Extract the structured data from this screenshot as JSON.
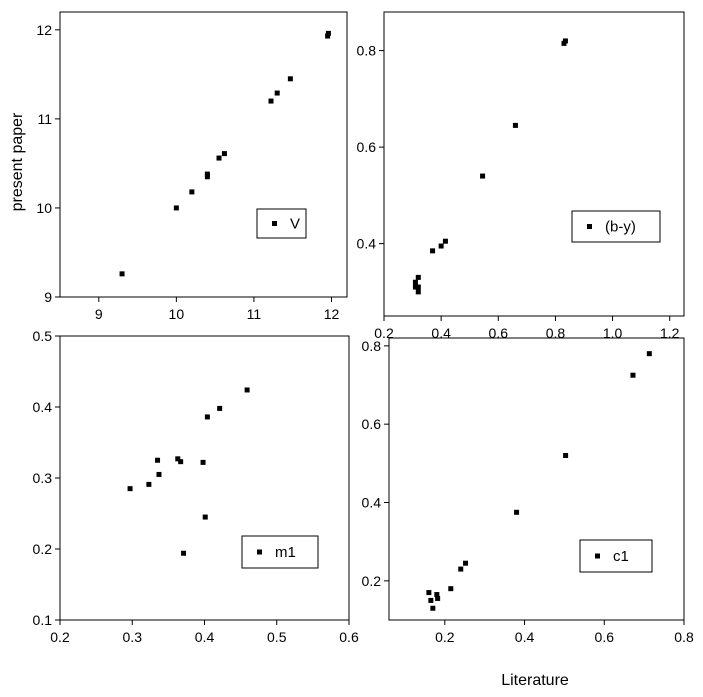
{
  "shared_labels": {
    "ylabel": "present paper",
    "xlabel": "Literature"
  },
  "chart_data": [
    {
      "type": "scatter",
      "legend": "V",
      "legend_position": "lower-right",
      "xlim": [
        8.5,
        12.2
      ],
      "ylim": [
        9,
        12.2
      ],
      "xticks": [
        9,
        10,
        11,
        12
      ],
      "yticks": [
        9,
        10,
        11,
        12
      ],
      "xtick_labels": [
        "9",
        "10",
        "11",
        "12"
      ],
      "ytick_labels": [
        "9",
        "10",
        "11",
        "12"
      ],
      "points": [
        [
          9.3,
          9.26
        ],
        [
          10.0,
          10.0
        ],
        [
          10.2,
          10.18
        ],
        [
          10.4,
          10.35
        ],
        [
          10.4,
          10.38
        ],
        [
          10.55,
          10.56
        ],
        [
          10.62,
          10.61
        ],
        [
          11.22,
          11.2
        ],
        [
          11.3,
          11.29
        ],
        [
          11.47,
          11.45
        ],
        [
          11.95,
          11.93
        ],
        [
          11.96,
          11.96
        ]
      ],
      "color": "#000000"
    },
    {
      "type": "scatter",
      "legend": "(b-y)",
      "legend_position": "lower-right",
      "xlim": [
        0.2,
        1.25
      ],
      "ylim": [
        0.25,
        0.88
      ],
      "xticks": [
        0.2,
        0.4,
        0.6,
        0.8,
        1.0,
        1.2
      ],
      "yticks": [
        0.4,
        0.6,
        0.8
      ],
      "xtick_labels": [
        "0.2",
        "0.4",
        "0.6",
        "0.8",
        "1.0",
        "1.2"
      ],
      "ytick_labels": [
        "0.4",
        "0.6",
        "0.8"
      ],
      "points": [
        [
          0.31,
          0.31
        ],
        [
          0.31,
          0.32
        ],
        [
          0.32,
          0.3
        ],
        [
          0.32,
          0.31
        ],
        [
          0.32,
          0.33
        ],
        [
          0.37,
          0.385
        ],
        [
          0.4,
          0.395
        ],
        [
          0.415,
          0.405
        ],
        [
          0.545,
          0.54
        ],
        [
          0.66,
          0.645
        ],
        [
          0.83,
          0.815
        ],
        [
          0.835,
          0.82
        ]
      ],
      "color": "#000000"
    },
    {
      "type": "scatter",
      "legend": "m1",
      "legend_position": "lower-right",
      "xlim": [
        0.2,
        0.6
      ],
      "ylim": [
        0.1,
        0.5
      ],
      "xticks": [
        0.2,
        0.3,
        0.4,
        0.5,
        0.6
      ],
      "yticks": [
        0.1,
        0.2,
        0.3,
        0.4,
        0.5
      ],
      "xtick_labels": [
        "0.2",
        "0.3",
        "0.4",
        "0.5",
        "0.6"
      ],
      "ytick_labels": [
        "0.1",
        "0.2",
        "0.3",
        "0.4",
        "0.5"
      ],
      "points": [
        [
          0.297,
          0.285
        ],
        [
          0.323,
          0.291
        ],
        [
          0.335,
          0.325
        ],
        [
          0.337,
          0.305
        ],
        [
          0.363,
          0.327
        ],
        [
          0.367,
          0.323
        ],
        [
          0.371,
          0.194
        ],
        [
          0.398,
          0.322
        ],
        [
          0.401,
          0.245
        ],
        [
          0.404,
          0.386
        ],
        [
          0.421,
          0.398
        ],
        [
          0.459,
          0.424
        ]
      ],
      "color": "#000000"
    },
    {
      "type": "scatter",
      "legend": "c1",
      "legend_position": "lower-right",
      "xlim": [
        0.06,
        0.8
      ],
      "ylim": [
        0.1,
        0.82
      ],
      "xticks": [
        0.2,
        0.4,
        0.6,
        0.8
      ],
      "yticks": [
        0.2,
        0.4,
        0.6,
        0.8
      ],
      "xtick_labels": [
        "0.2",
        "0.4",
        "0.6",
        "0.8"
      ],
      "ytick_labels": [
        "0.2",
        "0.4",
        "0.6",
        "0.8"
      ],
      "points": [
        [
          0.16,
          0.17
        ],
        [
          0.165,
          0.15
        ],
        [
          0.17,
          0.13
        ],
        [
          0.18,
          0.165
        ],
        [
          0.182,
          0.155
        ],
        [
          0.215,
          0.18
        ],
        [
          0.24,
          0.23
        ],
        [
          0.252,
          0.245
        ],
        [
          0.38,
          0.375
        ],
        [
          0.503,
          0.52
        ],
        [
          0.672,
          0.725
        ],
        [
          0.713,
          0.78
        ]
      ],
      "color": "#000000"
    }
  ]
}
